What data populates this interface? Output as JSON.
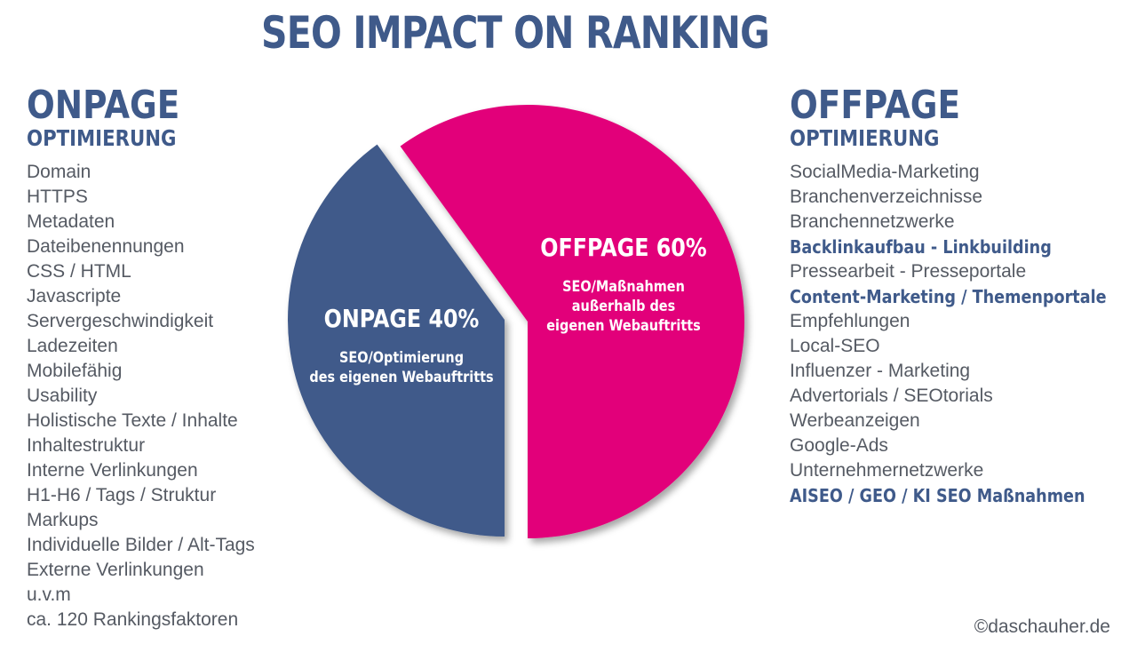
{
  "title": "SEO IMPACT ON RANKING",
  "onpage": {
    "heading": "ONPAGE",
    "subheading": "OPTIMIERUNG",
    "items": [
      {
        "text": "Domain",
        "bold": false
      },
      {
        "text": "HTTPS",
        "bold": false
      },
      {
        "text": "Metadaten",
        "bold": false
      },
      {
        "text": "Dateibenennungen",
        "bold": false
      },
      {
        "text": "CSS / HTML",
        "bold": false
      },
      {
        "text": "Javascripte",
        "bold": false
      },
      {
        "text": "Servergeschwindigkeit",
        "bold": false
      },
      {
        "text": "Ladezeiten",
        "bold": false
      },
      {
        "text": "Mobilefähig",
        "bold": false
      },
      {
        "text": "Usability",
        "bold": false
      },
      {
        "text": "Holistische Texte / Inhalte",
        "bold": false
      },
      {
        "text": "Inhaltestruktur",
        "bold": false
      },
      {
        "text": "Interne Verlinkungen",
        "bold": false
      },
      {
        "text": "H1-H6 / Tags / Struktur",
        "bold": false
      },
      {
        "text": "Markups",
        "bold": false
      },
      {
        "text": "Individuelle Bilder / Alt-Tags",
        "bold": false
      },
      {
        "text": "Externe Verlinkungen",
        "bold": false
      },
      {
        "text": "u.v.m",
        "bold": false
      },
      {
        "text": "ca. 120 Rankingsfaktoren",
        "bold": false
      }
    ]
  },
  "offpage": {
    "heading": "OFFPAGE",
    "subheading": "OPTIMIERUNG",
    "items": [
      {
        "text": "SocialMedia-Marketing",
        "bold": false
      },
      {
        "text": "Branchenverzeichnisse",
        "bold": false
      },
      {
        "text": "Branchennetzwerke",
        "bold": false
      },
      {
        "text": "Backlinkaufbau - Linkbuilding",
        "bold": true
      },
      {
        "text": "Pressearbeit - Presseportale",
        "bold": false
      },
      {
        "text": "Content-Marketing / Themenportale",
        "bold": true
      },
      {
        "text": "Empfehlungen",
        "bold": false
      },
      {
        "text": "Local-SEO",
        "bold": false
      },
      {
        "text": "Influenzer - Marketing",
        "bold": false
      },
      {
        "text": "Advertorials / SEOtorials",
        "bold": false
      },
      {
        "text": "Werbeanzeigen",
        "bold": false
      },
      {
        "text": "Google-Ads",
        "bold": false
      },
      {
        "text": "Unternehmernetzwerke",
        "bold": false
      },
      {
        "text": "AISEO / GEO / KI SEO Maßnahmen",
        "bold": true
      }
    ]
  },
  "chart_data": {
    "type": "pie",
    "slices": [
      {
        "label": "ONPAGE 40%",
        "value": 40,
        "description": [
          "SEO/Optimierung",
          "des eigenen Webauftritts"
        ],
        "color": "#3f5a8a"
      },
      {
        "label": "OFFPAGE 60%",
        "value": 60,
        "description": [
          "SEO/Maßnahmen",
          "außerhalb des",
          "eigenen Webauftritts"
        ],
        "color": "#e2007a"
      }
    ]
  },
  "copyright": "©daschauher.de"
}
